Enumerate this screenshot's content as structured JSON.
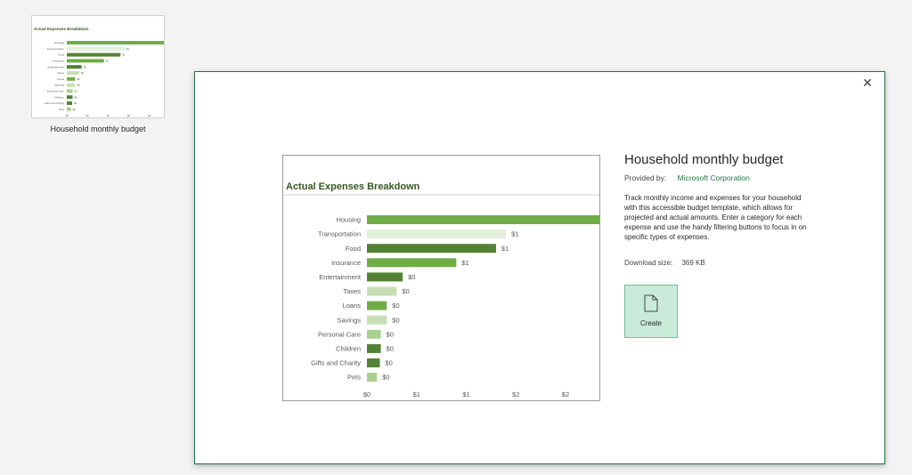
{
  "thumbnail": {
    "caption": "Household monthly budget"
  },
  "dialog": {
    "close_icon": "close-icon",
    "title": "Household monthly budget",
    "provider_label": "Provided by:",
    "provider_name": "Microsoft Corporation",
    "description": "Track monthly income and expenses for your household with this accessible budget template, which allows for projected and actual amounts. Enter a category for each expense and use the handy filtering buttons to focus in on specific types of expenses.",
    "download_label": "Download size:",
    "download_size": "369 KB",
    "create_label": "Create",
    "create_icon": "document-icon"
  },
  "colors": {
    "accent": "#217346",
    "title_green": "#375623",
    "bar_colors": [
      "#70ad47",
      "#e2efda",
      "#548235",
      "#70ad47",
      "#548235",
      "#c6e0b4",
      "#70ad47",
      "#c6e0b4",
      "#a9d08e",
      "#548235",
      "#548235",
      "#a9d08e"
    ]
  },
  "chart_data": {
    "type": "bar",
    "orientation": "horizontal",
    "title": "Actual Expenses Breakdown",
    "categories": [
      "Housing",
      "Transportation",
      "Food",
      "Insurance",
      "Entertainment",
      "Taxes",
      "Loans",
      "Savings",
      "Personal Care",
      "Children",
      "Gifts and Charity",
      "Pets"
    ],
    "values": [
      2.35,
      1.4,
      1.3,
      0.9,
      0.36,
      0.3,
      0.2,
      0.2,
      0.14,
      0.14,
      0.13,
      0.1
    ],
    "data_labels": [
      "",
      "$1",
      "$1",
      "$1",
      "$0",
      "$0",
      "$0",
      "$0",
      "$0",
      "$0",
      "$0",
      "$0"
    ],
    "x_ticks": [
      0,
      0.5,
      1,
      1.5,
      2
    ],
    "x_tick_labels": [
      "$0",
      "$1",
      "$1",
      "$2",
      "$2"
    ],
    "xlim": [
      0,
      2.35
    ],
    "grid": false,
    "legend": "none"
  }
}
